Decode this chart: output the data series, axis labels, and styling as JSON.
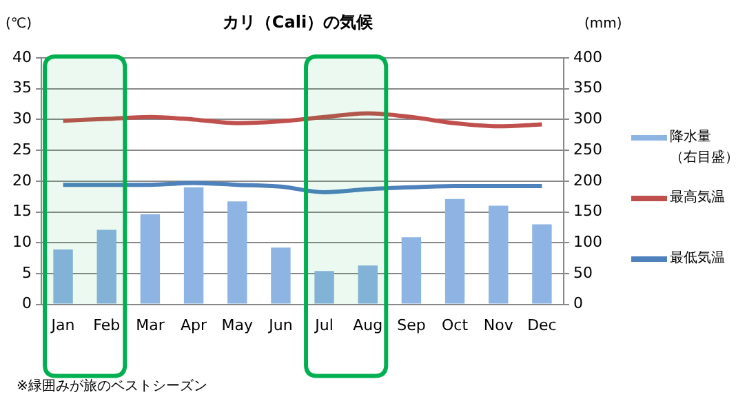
{
  "chart_data": {
    "type": "bar",
    "title": "カリ（Cali）の気候",
    "ylabel": "(℃)",
    "y2label": "(mm)",
    "categories": [
      "Jan",
      "Feb",
      "Mar",
      "Apr",
      "May",
      "Jun",
      "Jul",
      "Aug",
      "Sep",
      "Oct",
      "Nov",
      "Dec"
    ],
    "series": [
      {
        "name": "降水量（右目盛）",
        "axis": "y2",
        "color": "#8eb4e3",
        "values": [
          89,
          121,
          146,
          190,
          167,
          92,
          54,
          63,
          109,
          171,
          160,
          130
        ]
      },
      {
        "name": "最高気温",
        "type": "line",
        "color": "#c0504d",
        "values": [
          29.8,
          30.1,
          30.4,
          30.0,
          29.4,
          29.7,
          30.4,
          31.0,
          30.4,
          29.4,
          28.9,
          29.2
        ]
      },
      {
        "name": "最低気温",
        "type": "line",
        "color": "#4f81bd",
        "values": [
          19.4,
          19.4,
          19.4,
          19.7,
          19.4,
          19.1,
          18.2,
          18.7,
          19.0,
          19.2,
          19.2,
          19.2
        ]
      }
    ],
    "ylim": [
      0,
      40
    ],
    "yticks": [
      0,
      5,
      10,
      15,
      20,
      25,
      30,
      35,
      40
    ],
    "y2lim": [
      0,
      400
    ],
    "y2ticks": [
      0,
      50,
      100,
      150,
      200,
      250,
      300,
      350,
      400
    ],
    "bands": [
      {
        "axis": "x",
        "from": "Jan",
        "to": "Feb",
        "color": "#00b050"
      },
      {
        "axis": "x",
        "from": "Jul",
        "to": "Aug",
        "color": "#00b050"
      }
    ],
    "annotations": [
      "※緑囲みが旅のベストシーズン"
    ],
    "grid": "y",
    "legend": "right",
    "marker": "none",
    "line_style": "solid"
  }
}
